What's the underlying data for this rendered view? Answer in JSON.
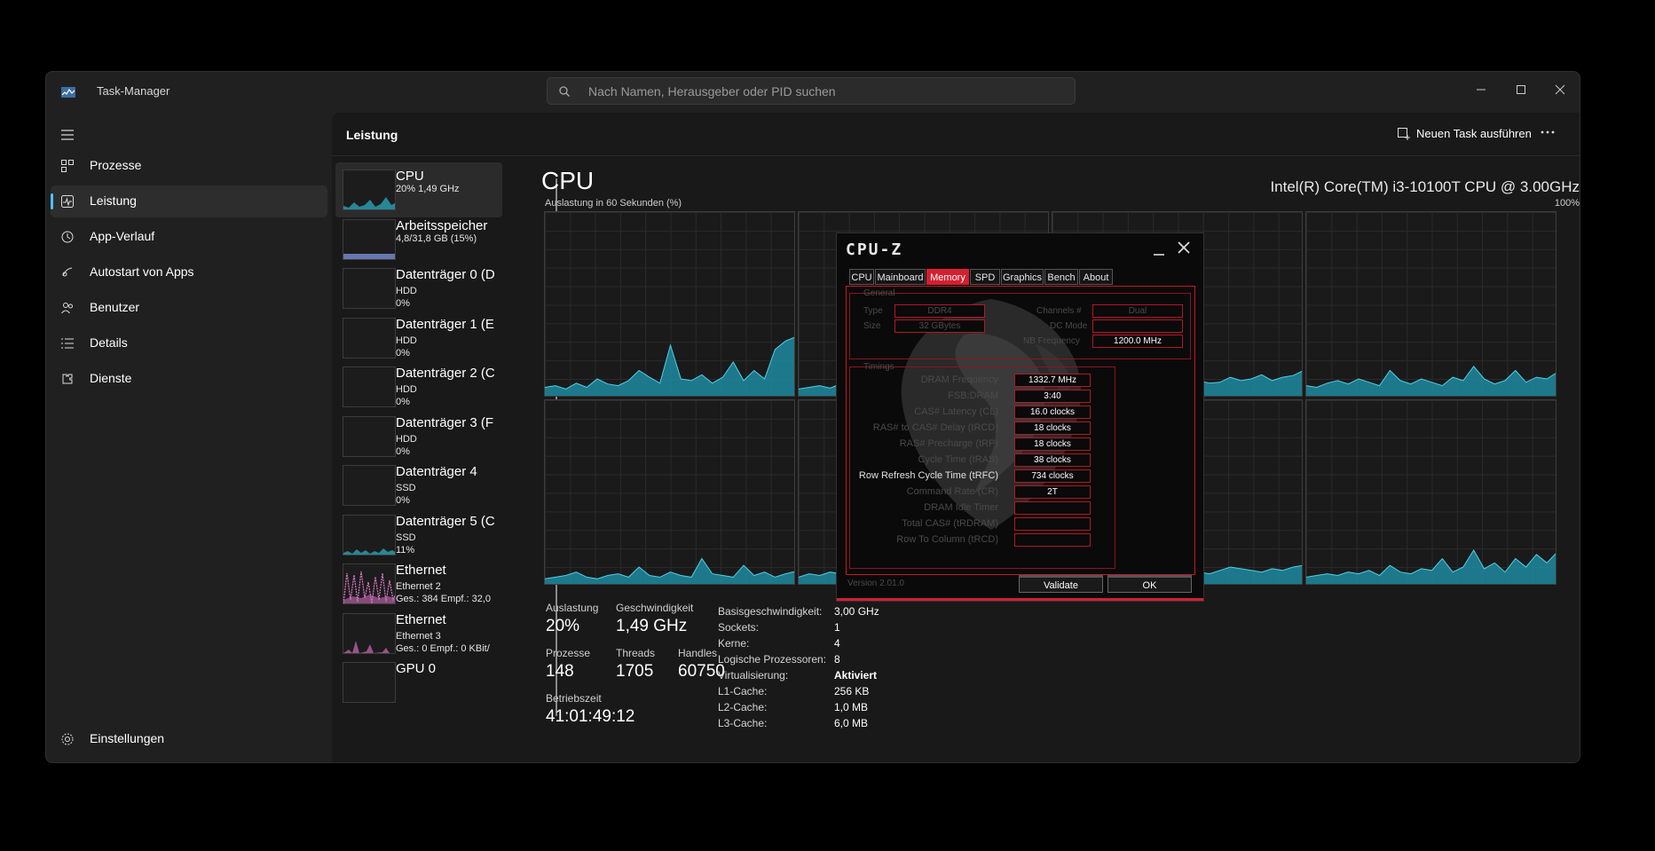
{
  "window": {
    "title": "Task-Manager"
  },
  "search": {
    "placeholder": "Nach Namen, Herausgeber oder PID suchen"
  },
  "sidebar": {
    "items": [
      {
        "label": "Prozesse"
      },
      {
        "label": "Leistung",
        "active": true
      },
      {
        "label": "App-Verlauf"
      },
      {
        "label": "Autostart von Apps"
      },
      {
        "label": "Benutzer"
      },
      {
        "label": "Details"
      },
      {
        "label": "Dienste"
      }
    ],
    "settings": "Einstellungen"
  },
  "header": {
    "title": "Leistung",
    "new_task": "Neuen Task ausführen"
  },
  "perf_list": [
    {
      "title": "CPU",
      "sub1": "20% 1,49 GHz",
      "sub2": ""
    },
    {
      "title": "Arbeitsspeicher",
      "sub1": "4,8/31,8 GB (15%)",
      "sub2": ""
    },
    {
      "title": "Datenträger 0 (D",
      "sub1": "HDD",
      "sub2": "0%"
    },
    {
      "title": "Datenträger 1 (E",
      "sub1": "HDD",
      "sub2": "0%"
    },
    {
      "title": "Datenträger 2 (C",
      "sub1": "HDD",
      "sub2": "0%"
    },
    {
      "title": "Datenträger 3 (F",
      "sub1": "HDD",
      "sub2": "0%"
    },
    {
      "title": "Datenträger 4",
      "sub1": "SSD",
      "sub2": "0%"
    },
    {
      "title": "Datenträger 5 (C",
      "sub1": "SSD",
      "sub2": "11%"
    },
    {
      "title": "Ethernet",
      "sub1": "Ethernet 2",
      "sub2": "Ges.: 384 Empf.: 32,0"
    },
    {
      "title": "Ethernet",
      "sub1": "Ethernet 3",
      "sub2": "Ges.: 0 Empf.: 0 KBit/"
    },
    {
      "title": "GPU 0",
      "sub1": "",
      "sub2": ""
    }
  ],
  "cpu": {
    "title": "CPU",
    "model": "Intel(R) Core(TM) i3-10100T CPU @ 3.00GHz",
    "util_label": "Auslastung in 60 Sekunden (%)",
    "util_max": "100%",
    "stats": {
      "auslastung_label": "Auslastung",
      "auslastung": "20%",
      "geschw_label": "Geschwindigkeit",
      "geschw": "1,49 GHz",
      "prozesse_label": "Prozesse",
      "prozesse": "148",
      "threads_label": "Threads",
      "threads": "1705",
      "handles_label": "Handles",
      "handles": "60750",
      "betrieb_label": "Betriebszeit",
      "betrieb": "41:01:49:12"
    },
    "specs": [
      {
        "k": "Basisgeschwindigkeit:",
        "v": "3,00 GHz"
      },
      {
        "k": "Sockets:",
        "v": "1"
      },
      {
        "k": "Kerne:",
        "v": "4"
      },
      {
        "k": "Logische Prozessoren:",
        "v": "8"
      },
      {
        "k": "Virtualisierung:",
        "v": "Aktiviert"
      },
      {
        "k": "L1-Cache:",
        "v": "256 KB"
      },
      {
        "k": "L2-Cache:",
        "v": "1,0 MB"
      },
      {
        "k": "L3-Cache:",
        "v": "6,0 MB"
      }
    ]
  },
  "cpuz": {
    "logo": "CPU-Z",
    "tabs": [
      "CPU",
      "Mainboard",
      "Memory",
      "SPD",
      "Graphics",
      "Bench",
      "About"
    ],
    "active_tab": "Memory",
    "general": {
      "legend": "General",
      "type_label": "Type",
      "type": "DDR4",
      "size_label": "Size",
      "size": "32 GBytes",
      "channels_label": "Channels #",
      "channels": "Dual",
      "dc_label": "DC Mode",
      "dc": "",
      "nb_label": "NB Frequency",
      "nb": "1200.0 MHz"
    },
    "timings": {
      "legend": "Timings",
      "rows": [
        {
          "label": "DRAM Frequency",
          "value": "1332.7 MHz"
        },
        {
          "label": "FSB:DRAM",
          "value": "3:40"
        },
        {
          "label": "CAS# Latency (CL)",
          "value": "16.0 clocks"
        },
        {
          "label": "RAS# to CAS# Delay (tRCD)",
          "value": "18 clocks"
        },
        {
          "label": "RAS# Precharge (tRP)",
          "value": "18 clocks"
        },
        {
          "label": "Cycle Time (tRAS)",
          "value": "38 clocks"
        },
        {
          "label": "Row Refresh Cycle Time (tRFC)",
          "value": "734 clocks"
        },
        {
          "label": "Command Rate (CR)",
          "value": "2T"
        },
        {
          "label": "DRAM Idle Timer",
          "value": ""
        },
        {
          "label": "Total CAS# (tRDRAM)",
          "value": ""
        },
        {
          "label": "Row To Column (tRCD)",
          "value": ""
        }
      ]
    },
    "version": "Version 2.01.0",
    "validate": "Validate",
    "ok": "OK"
  }
}
